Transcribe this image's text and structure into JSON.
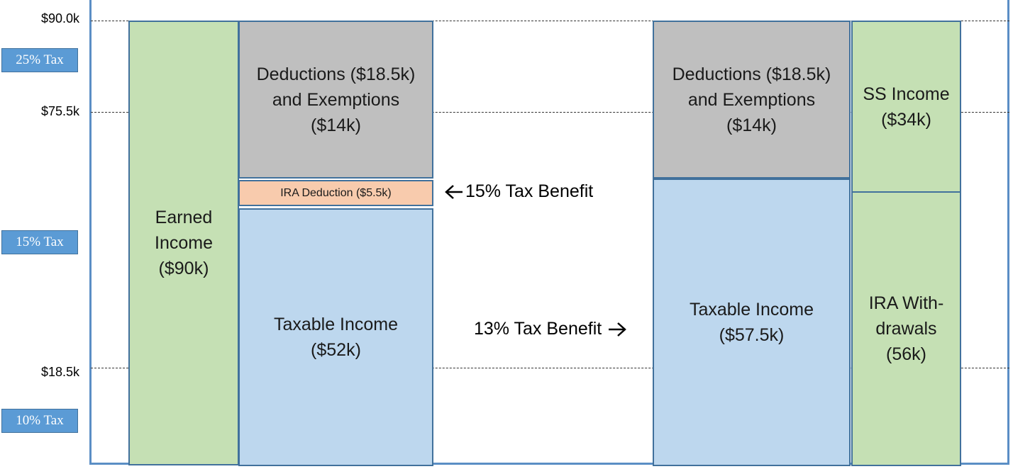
{
  "y_axis": {
    "tick_90": "$90.0k",
    "tick_75": "$75.5k",
    "tick_18": "$18.5k"
  },
  "brackets": {
    "top": "25% Tax",
    "middle": "15% Tax",
    "bottom": "10% Tax"
  },
  "left_scenario": {
    "earned_income": "Earned\nIncome\n($90k)",
    "deductions": "Deductions ($18.5k)\nand Exemptions\n($14k)",
    "ira_deduction": "IRA Deduction ($5.5k)",
    "taxable_income": "Taxable Income\n($52k)"
  },
  "right_scenario": {
    "deductions": "Deductions ($18.5k)\nand Exemptions\n($14k)",
    "taxable_income": "Taxable Income\n($57.5k)",
    "ss_income": "SS Income\n($34k)",
    "ira_withdrawals": "IRA With-\ndrawals\n(56k)"
  },
  "annotations": {
    "benefit_deduction": "15% Tax Benefit",
    "benefit_withdrawal": "13% Tax Benefit"
  },
  "colors": {
    "frame": "#5b8ec5",
    "income": "#c5e0b4",
    "deductions": "#bfbfbf",
    "taxable": "#bdd7ee",
    "ira_deduction": "#f8cbad",
    "bracket_label": "#5b9bd5"
  }
}
